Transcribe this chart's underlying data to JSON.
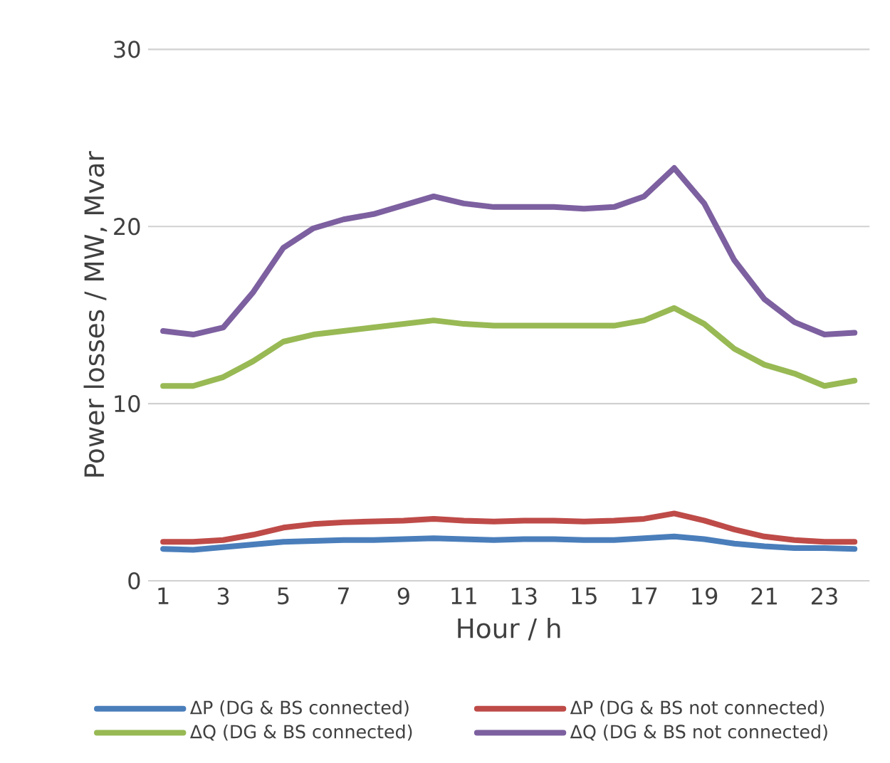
{
  "chart_data": {
    "type": "line",
    "xlabel": "Hour / h",
    "ylabel": "Power losses / MW, Mvar",
    "categories": [
      "1",
      null,
      "3",
      null,
      "5",
      null,
      "7",
      null,
      "9",
      null,
      "11",
      null,
      "13",
      null,
      "15",
      null,
      "17",
      null,
      "19",
      null,
      "21",
      null,
      "23",
      null
    ],
    "ylim": [
      0,
      30
    ],
    "yticks": [
      0,
      10,
      20,
      30
    ],
    "grid": "y",
    "legend": "bottom",
    "series": [
      {
        "name": "ΔP (DG & BS connected)",
        "color": "#4a7ebb",
        "values": [
          1.8,
          1.75,
          1.9,
          2.05,
          2.2,
          2.25,
          2.3,
          2.3,
          2.35,
          2.4,
          2.35,
          2.3,
          2.35,
          2.35,
          2.3,
          2.3,
          2.4,
          2.5,
          2.35,
          2.1,
          1.95,
          1.85,
          1.85,
          1.8
        ]
      },
      {
        "name": "ΔP (DG & BS not connected)",
        "color": "#be4b48",
        "values": [
          2.2,
          2.2,
          2.3,
          2.6,
          3.0,
          3.2,
          3.3,
          3.35,
          3.4,
          3.5,
          3.4,
          3.35,
          3.4,
          3.4,
          3.35,
          3.4,
          3.5,
          3.8,
          3.4,
          2.9,
          2.5,
          2.3,
          2.2,
          2.2
        ]
      },
      {
        "name": "ΔQ (DG & BS connected)",
        "color": "#98b954",
        "values": [
          11.0,
          11.0,
          11.5,
          12.4,
          13.5,
          13.9,
          14.1,
          14.3,
          14.5,
          14.7,
          14.5,
          14.4,
          14.4,
          14.4,
          14.4,
          14.4,
          14.7,
          15.4,
          14.5,
          13.1,
          12.2,
          11.7,
          11.0,
          11.3
        ]
      },
      {
        "name": "ΔQ (DG & BS not connected)",
        "color": "#7d60a0",
        "values": [
          14.1,
          13.9,
          14.3,
          16.3,
          18.8,
          19.9,
          20.4,
          20.7,
          21.2,
          21.7,
          21.3,
          21.1,
          21.1,
          21.1,
          21.0,
          21.1,
          21.7,
          23.3,
          21.3,
          18.1,
          15.9,
          14.6,
          13.9,
          14.0
        ]
      }
    ]
  }
}
